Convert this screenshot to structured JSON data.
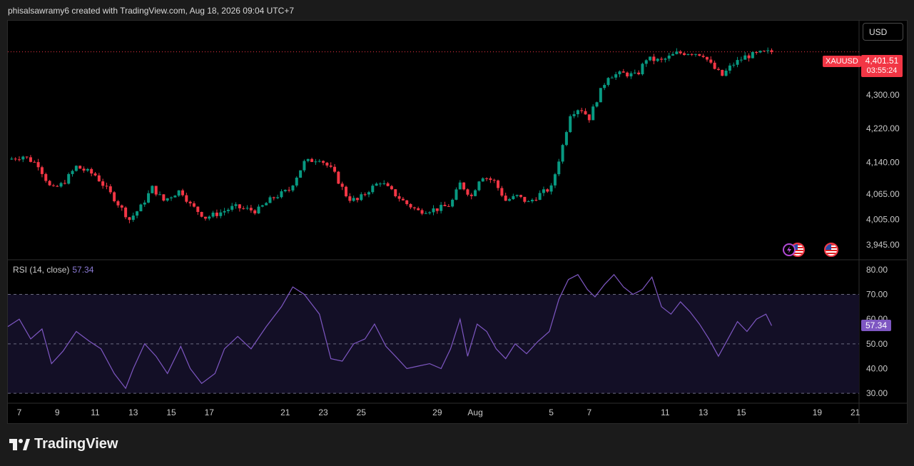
{
  "header": {
    "credit": "phisalsawramy6 created with TradingView.com, Aug 18, 2026 09:04 UTC+7"
  },
  "toolbar": {
    "currency_label": "USD"
  },
  "symbol": {
    "name": "XAUUSD",
    "last_price": "4,401.51",
    "countdown": "03:55:24"
  },
  "rsi": {
    "legend_label": "RSI (14, close)",
    "value_label": "57.34"
  },
  "brand": {
    "name": "TradingView"
  },
  "colors": {
    "up": "#089981",
    "down": "#f23645",
    "rsi_line": "#7e57c2",
    "rsi_band": "#130f26"
  },
  "chart_data": [
    {
      "type": "candlestick",
      "symbol": "XAUUSD",
      "ylim": [
        3910,
        4475
      ],
      "y_ticks": [
        {
          "value": 3945,
          "label": "3,945.00"
        },
        {
          "value": 4005,
          "label": "4,005.00"
        },
        {
          "value": 4065,
          "label": "4,065.00"
        },
        {
          "value": 4140,
          "label": "4,140.00"
        },
        {
          "value": 4220,
          "label": "4,220.00"
        },
        {
          "value": 4300,
          "label": "4,300.00"
        }
      ],
      "x_ticks": [
        {
          "day": 7,
          "label": "7"
        },
        {
          "day": 9,
          "label": "9"
        },
        {
          "day": 11,
          "label": "11"
        },
        {
          "day": 13,
          "label": "13"
        },
        {
          "day": 15,
          "label": "15"
        },
        {
          "day": 17,
          "label": "17"
        },
        {
          "day": 21,
          "label": "21"
        },
        {
          "day": 23,
          "label": "23"
        },
        {
          "day": 25,
          "label": "25"
        },
        {
          "day": 29,
          "label": "29"
        },
        {
          "day": 31,
          "label": "Aug"
        },
        {
          "day": 35,
          "label": "5"
        },
        {
          "day": 37,
          "label": "7"
        },
        {
          "day": 41,
          "label": "11"
        },
        {
          "day": 43,
          "label": "13"
        },
        {
          "day": 45,
          "label": "15"
        },
        {
          "day": 49,
          "label": "19"
        },
        {
          "day": 51,
          "label": "21"
        }
      ],
      "x_range": [
        6.4,
        51.2
      ],
      "last_price": 4401.51,
      "anchors": [
        [
          6.4,
          4147
        ],
        [
          7.2,
          4155
        ],
        [
          8.0,
          4135
        ],
        [
          8.7,
          4075
        ],
        [
          9.3,
          4090
        ],
        [
          10.0,
          4130
        ],
        [
          11.0,
          4110
        ],
        [
          12.0,
          4055
        ],
        [
          12.8,
          4005
        ],
        [
          13.4,
          4035
        ],
        [
          14.0,
          4080
        ],
        [
          14.6,
          4050
        ],
        [
          15.5,
          4075
        ],
        [
          16.0,
          4040
        ],
        [
          16.8,
          4010
        ],
        [
          17.5,
          4020
        ],
        [
          18.3,
          4035
        ],
        [
          19.5,
          4025
        ],
        [
          20.3,
          4055
        ],
        [
          21.2,
          4075
        ],
        [
          22.0,
          4140
        ],
        [
          22.8,
          4150
        ],
        [
          23.5,
          4120
        ],
        [
          24.3,
          4055
        ],
        [
          24.8,
          4050
        ],
        [
          25.4,
          4075
        ],
        [
          26.0,
          4095
        ],
        [
          26.5,
          4075
        ],
        [
          27.3,
          4045
        ],
        [
          28.0,
          4025
        ],
        [
          29.0,
          4030
        ],
        [
          29.7,
          4040
        ],
        [
          30.2,
          4090
        ],
        [
          30.8,
          4060
        ],
        [
          31.3,
          4110
        ],
        [
          32.0,
          4095
        ],
        [
          32.6,
          4050
        ],
        [
          33.2,
          4060
        ],
        [
          33.8,
          4045
        ],
        [
          34.4,
          4065
        ],
        [
          35.0,
          4080
        ],
        [
          35.6,
          4180
        ],
        [
          36.0,
          4255
        ],
        [
          36.5,
          4270
        ],
        [
          37.0,
          4245
        ],
        [
          37.5,
          4300
        ],
        [
          38.0,
          4345
        ],
        [
          38.8,
          4350
        ],
        [
          39.5,
          4345
        ],
        [
          40.0,
          4385
        ],
        [
          40.8,
          4380
        ],
        [
          41.6,
          4398
        ],
        [
          42.4,
          4400
        ],
        [
          43.0,
          4395
        ],
        [
          43.5,
          4365
        ],
        [
          44.0,
          4345
        ],
        [
          44.5,
          4370
        ],
        [
          45.2,
          4390
        ],
        [
          46.0,
          4398
        ],
        [
          46.6,
          4401.51
        ]
      ]
    },
    {
      "type": "line",
      "name": "RSI (14, close)",
      "ylim": [
        26,
        84
      ],
      "upper_band": 70,
      "lower_band": 30,
      "mid_line": 50,
      "last_value": 57.34,
      "y_ticks": [
        {
          "value": 30,
          "label": "30.00"
        },
        {
          "value": 40,
          "label": "40.00"
        },
        {
          "value": 50,
          "label": "50.00"
        },
        {
          "value": 60,
          "label": "60.00"
        },
        {
          "value": 70,
          "label": "70.00"
        },
        {
          "value": 80,
          "label": "80.00"
        }
      ],
      "x": [
        6.4,
        7.0,
        7.6,
        8.2,
        8.7,
        9.3,
        10.0,
        10.7,
        11.3,
        12.0,
        12.6,
        13.0,
        13.6,
        14.2,
        14.8,
        15.5,
        16.0,
        16.6,
        17.3,
        17.8,
        18.5,
        19.2,
        20.0,
        20.8,
        21.4,
        22.0,
        22.4,
        22.8,
        23.4,
        24.0,
        24.6,
        25.2,
        25.7,
        26.3,
        26.8,
        27.4,
        28.0,
        28.6,
        29.2,
        29.7,
        30.2,
        30.6,
        31.1,
        31.6,
        32.1,
        32.6,
        33.1,
        33.7,
        34.3,
        34.9,
        35.4,
        35.9,
        36.4,
        36.9,
        37.3,
        37.8,
        38.3,
        38.8,
        39.3,
        39.8,
        40.3,
        40.8,
        41.3,
        41.8,
        42.3,
        42.8,
        43.3,
        43.8,
        44.3,
        44.8,
        45.3,
        45.8,
        46.3,
        46.6
      ],
      "values": [
        57,
        60,
        52,
        56,
        42,
        47,
        55,
        51,
        48,
        38,
        32,
        40,
        50,
        45,
        38,
        49,
        40,
        34,
        38,
        48,
        53,
        48,
        57,
        65,
        73,
        70,
        66,
        62,
        44,
        43,
        50,
        52,
        58,
        49,
        45,
        40,
        41,
        42,
        40,
        48,
        60,
        45,
        58,
        55,
        48,
        44,
        50,
        46,
        51,
        55,
        68,
        76,
        78,
        72,
        69,
        74,
        78,
        73,
        70,
        72,
        77,
        65,
        62,
        67,
        63,
        58,
        52,
        45,
        52,
        59,
        55,
        60,
        62,
        57.34
      ]
    }
  ]
}
